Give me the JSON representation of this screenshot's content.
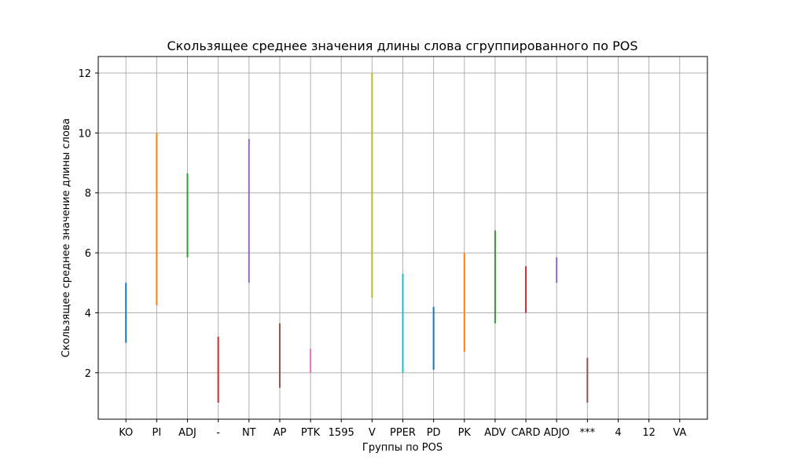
{
  "chart_data": {
    "type": "line",
    "title": "Скользящее среднее значения длины слова сгруппированного по POS",
    "xlabel": "Группы по POS",
    "ylabel": "Скользящее среднее значение длины слова",
    "categories": [
      "KO",
      "PI",
      "ADJ",
      "-",
      "NT",
      "AP",
      "PTK",
      "1595",
      "V",
      "PPER",
      "PD",
      "PK",
      "ADV",
      "CARD",
      "ADJO",
      "***",
      "4",
      "12",
      "VA"
    ],
    "yticks": [
      2,
      4,
      6,
      8,
      10,
      12
    ],
    "ylim": [
      0.45,
      12.55
    ],
    "grid": true,
    "series": [
      {
        "category": "KO",
        "min": 3.0,
        "max": 5.0,
        "color": "#1f77b4"
      },
      {
        "category": "PI",
        "min": 4.25,
        "max": 10.0,
        "color": "#ff7f0e"
      },
      {
        "category": "ADJ",
        "min": 5.85,
        "max": 8.65,
        "color": "#2ca02c"
      },
      {
        "category": "-",
        "min": 1.0,
        "max": 3.2,
        "color": "#d62728"
      },
      {
        "category": "NT",
        "min": 5.0,
        "max": 9.8,
        "color": "#9467bd"
      },
      {
        "category": "AP",
        "min": 1.5,
        "max": 3.65,
        "color": "#8c564b"
      },
      {
        "category": "PTK",
        "min": 2.0,
        "max": 2.8,
        "color": "#e377c2"
      },
      {
        "category": "V",
        "min": 4.5,
        "max": 12.0,
        "color": "#bcbd22"
      },
      {
        "category": "PPER",
        "min": 2.0,
        "max": 5.3,
        "color": "#17becf"
      },
      {
        "category": "PD",
        "min": 2.1,
        "max": 4.2,
        "color": "#1f77b4"
      },
      {
        "category": "PK",
        "min": 2.7,
        "max": 6.0,
        "color": "#ff7f0e"
      },
      {
        "category": "ADV",
        "min": 3.65,
        "max": 6.75,
        "color": "#2ca02c"
      },
      {
        "category": "CARD",
        "min": 4.0,
        "max": 5.55,
        "color": "#d62728"
      },
      {
        "category": "ADJO",
        "min": 5.0,
        "max": 5.85,
        "color": "#9467bd"
      },
      {
        "category": "***",
        "min": 1.0,
        "max": 2.5,
        "color": "#8c564b"
      }
    ]
  }
}
